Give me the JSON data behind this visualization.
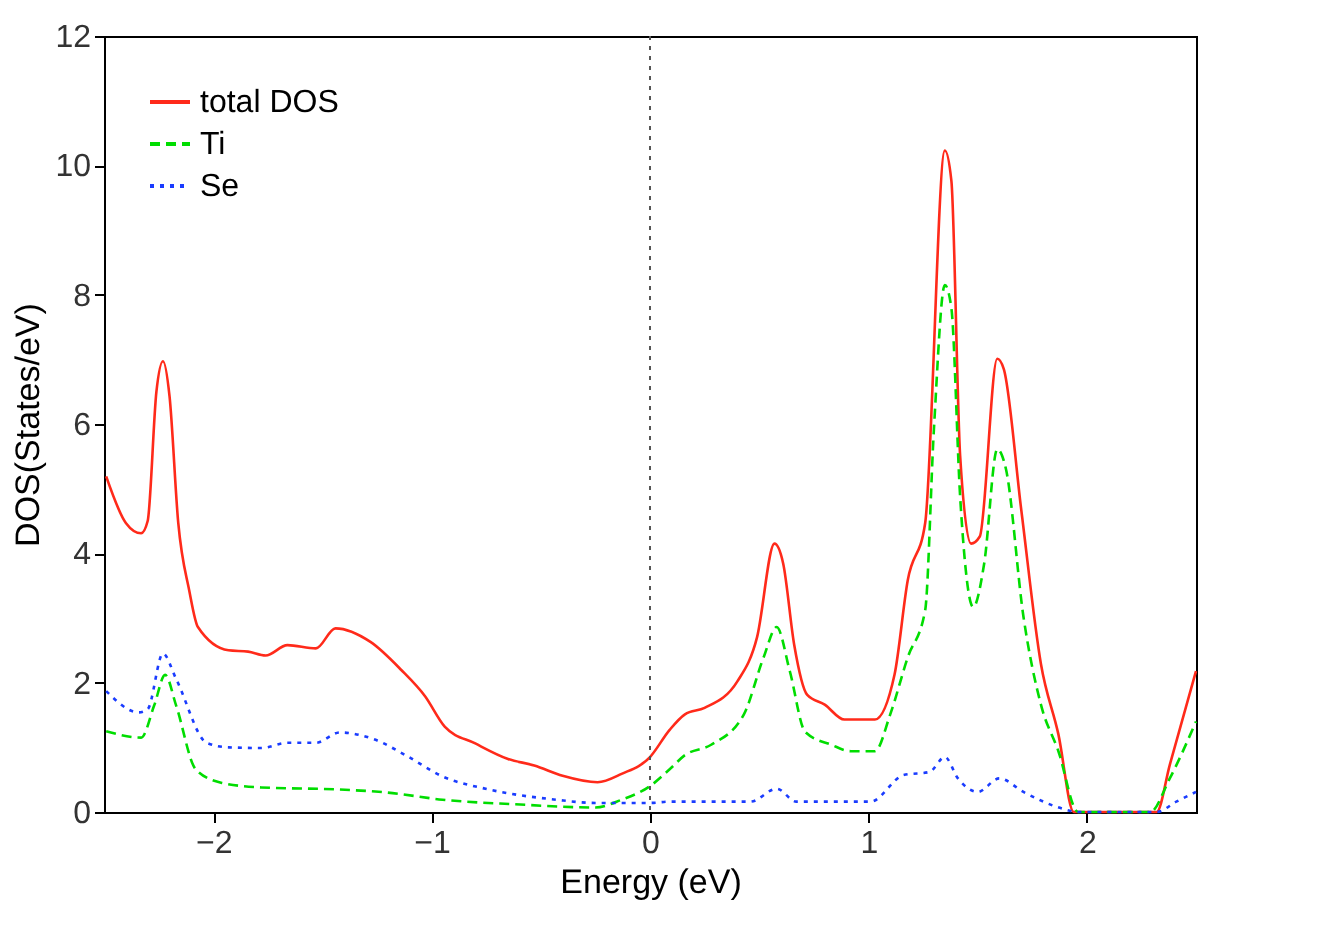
{
  "chart_data": {
    "type": "line",
    "xlabel": "Energy (eV)",
    "ylabel": "DOS(States/eV)",
    "xlim": [
      -2.5,
      2.5
    ],
    "ylim": [
      0,
      12
    ],
    "xticks": [
      -2,
      -1,
      0,
      1,
      2
    ],
    "yticks": [
      0,
      2,
      4,
      6,
      8,
      10,
      12
    ],
    "grid": false,
    "legend": "top left",
    "marker": "none",
    "ref_lines": [
      {
        "axis": "x",
        "value": 0,
        "color": "#555555",
        "line_style": "dotted"
      }
    ],
    "series": [
      {
        "name": "total DOS",
        "color": "#ff2a1a",
        "line_style": "solid",
        "x": [
          -2.49,
          -2.4,
          -2.33,
          -2.3,
          -2.26,
          -2.23,
          -2.2,
          -2.16,
          -2.11,
          -2.07,
          -1.93,
          -1.84,
          -1.76,
          -1.66,
          -1.53,
          -1.44,
          -1.28,
          -1.14,
          -1.03,
          -0.94,
          -0.8,
          -0.65,
          -0.53,
          -0.4,
          -0.24,
          -0.13,
          0.0,
          0.09,
          0.16,
          0.25,
          0.4,
          0.49,
          0.57,
          0.61,
          0.66,
          0.72,
          0.8,
          0.89,
          1.03,
          1.12,
          1.18,
          1.26,
          1.35,
          1.38,
          1.42,
          1.47,
          1.51,
          1.59,
          1.62,
          1.7,
          1.79,
          1.87,
          1.94,
          2.32,
          2.38,
          2.5
        ],
        "values": [
          5.19,
          4.47,
          4.31,
          4.5,
          6.5,
          6.97,
          6.43,
          4.47,
          3.43,
          2.86,
          2.5,
          2.48,
          2.42,
          2.58,
          2.53,
          2.84,
          2.63,
          2.2,
          1.79,
          1.32,
          1.06,
          0.82,
          0.72,
          0.56,
          0.46,
          0.59,
          0.85,
          1.27,
          1.51,
          1.61,
          2.02,
          2.7,
          4.15,
          3.84,
          2.59,
          1.81,
          1.66,
          1.43,
          1.43,
          2.13,
          3.58,
          4.47,
          10.23,
          9.76,
          5.51,
          4.15,
          4.26,
          7.01,
          6.85,
          4.67,
          2.29,
          1.2,
          0.0,
          0.0,
          0.73,
          2.18
        ]
      },
      {
        "name": "Ti",
        "color": "#00dd00",
        "line_style": "dashed",
        "x": [
          -2.49,
          -2.33,
          -2.27,
          -2.22,
          -2.17,
          -2.08,
          -1.96,
          -1.78,
          -1.44,
          -1.2,
          -0.95,
          -0.62,
          -0.25,
          -0.13,
          0.0,
          0.09,
          0.16,
          0.28,
          0.43,
          0.52,
          0.58,
          0.64,
          0.71,
          0.83,
          0.92,
          1.03,
          1.1,
          1.18,
          1.26,
          1.3,
          1.35,
          1.38,
          1.42,
          1.48,
          1.53,
          1.59,
          1.63,
          1.71,
          1.79,
          1.87,
          1.96,
          2.29,
          2.38,
          2.5
        ],
        "values": [
          1.25,
          1.15,
          1.65,
          2.12,
          1.65,
          0.66,
          0.45,
          0.38,
          0.35,
          0.3,
          0.19,
          0.12,
          0.07,
          0.19,
          0.4,
          0.66,
          0.88,
          1.04,
          1.51,
          2.39,
          2.86,
          2.18,
          1.24,
          1.04,
          0.94,
          0.94,
          1.51,
          2.39,
          3.12,
          5.92,
          8.15,
          7.79,
          4.88,
          3.17,
          3.84,
          5.61,
          5.3,
          3.02,
          1.66,
          0.94,
          0.0,
          0.0,
          0.52,
          1.4
        ]
      },
      {
        "name": "Se",
        "color": "#1a3cff",
        "line_style": "dotted",
        "x": [
          -2.49,
          -2.34,
          -2.3,
          -2.23,
          -2.17,
          -2.03,
          -1.93,
          -1.78,
          -1.66,
          -1.53,
          -1.42,
          -1.26,
          -1.11,
          -0.95,
          -0.74,
          -0.43,
          -0.25,
          0.0,
          0.09,
          0.46,
          0.58,
          0.67,
          1.01,
          1.16,
          1.28,
          1.35,
          1.41,
          1.5,
          1.6,
          1.71,
          1.89,
          1.96,
          2.32,
          2.41,
          2.5
        ],
        "values": [
          1.87,
          1.54,
          1.59,
          2.45,
          2.06,
          1.07,
          1.0,
          0.99,
          1.07,
          1.07,
          1.23,
          1.12,
          0.86,
          0.55,
          0.35,
          0.19,
          0.14,
          0.14,
          0.16,
          0.16,
          0.36,
          0.16,
          0.16,
          0.57,
          0.62,
          0.85,
          0.52,
          0.31,
          0.52,
          0.31,
          0.05,
          0.0,
          0.0,
          0.16,
          0.31
        ]
      }
    ]
  }
}
